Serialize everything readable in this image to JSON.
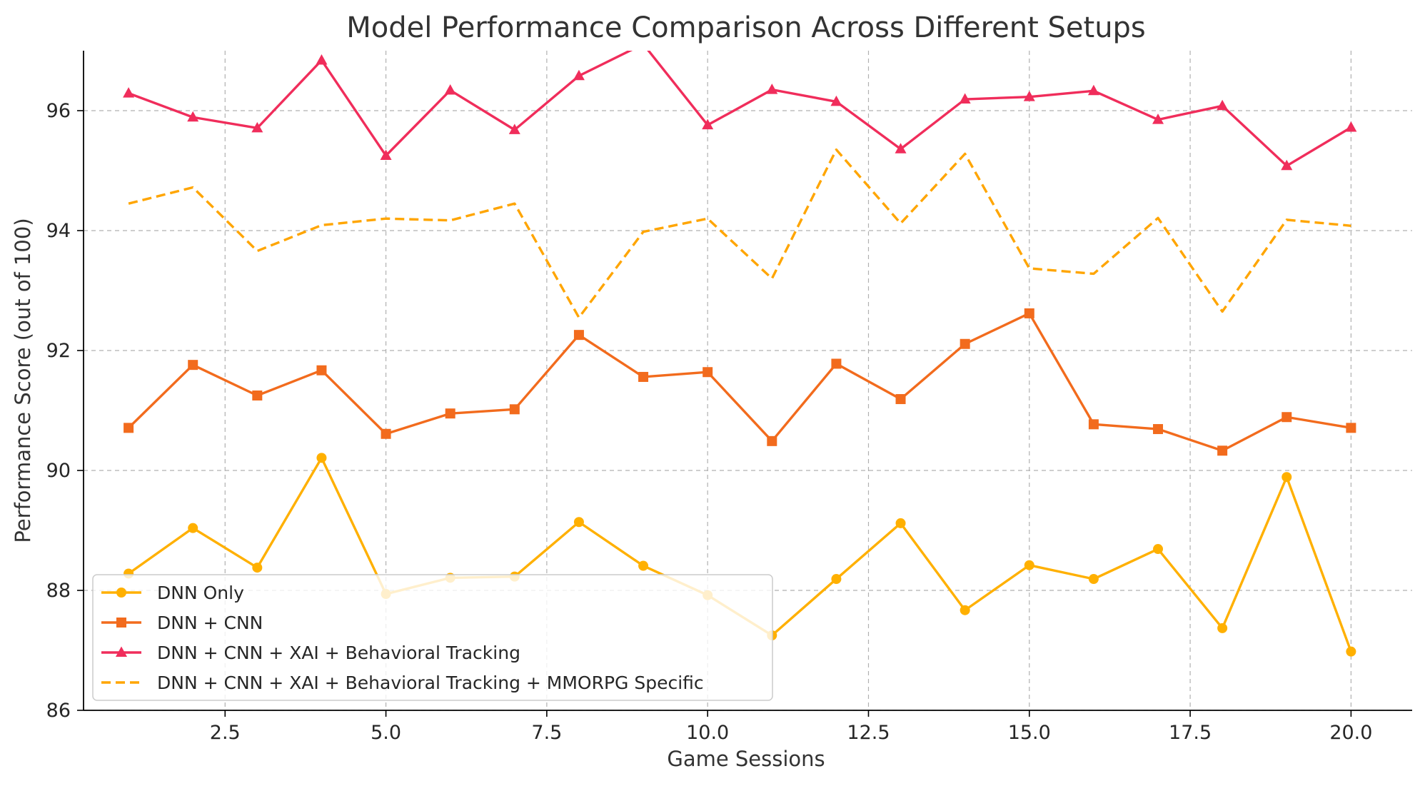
{
  "chart_data": {
    "type": "line",
    "title": "Model Performance Comparison Across Different Setups",
    "xlabel": "Game Sessions",
    "ylabel": "Performance Score (out of 100)",
    "xlim": [
      0.3,
      20.95
    ],
    "ylim": [
      86,
      97
    ],
    "xticks": [
      2.5,
      5.0,
      7.5,
      10.0,
      12.5,
      15.0,
      17.5,
      20.0
    ],
    "xtick_labels": [
      "2.5",
      "5.0",
      "7.5",
      "10.0",
      "12.5",
      "15.0",
      "17.5",
      "20.0"
    ],
    "yticks": [
      86,
      88,
      90,
      92,
      94,
      96
    ],
    "ytick_labels": [
      "86",
      "88",
      "90",
      "92",
      "94",
      "96"
    ],
    "grid": true,
    "legend_position": "lower-left",
    "x": [
      1,
      2,
      3,
      4,
      5,
      6,
      7,
      8,
      9,
      10,
      11,
      12,
      13,
      14,
      15,
      16,
      17,
      18,
      19,
      20
    ],
    "series": [
      {
        "name": "DNN Only",
        "color": "#FFB000",
        "marker": "circle",
        "line_style": "solid",
        "values": [
          88.28,
          89.04,
          88.38,
          90.21,
          87.94,
          88.21,
          88.23,
          89.14,
          88.41,
          87.92,
          87.25,
          88.19,
          89.12,
          87.67,
          88.42,
          88.19,
          88.69,
          87.37,
          89.89,
          86.98
        ]
      },
      {
        "name": "DNN + CNN",
        "color": "#F26B1D",
        "marker": "square",
        "line_style": "solid",
        "values": [
          90.71,
          91.76,
          91.25,
          91.67,
          90.61,
          90.95,
          91.02,
          92.26,
          91.56,
          91.64,
          90.49,
          91.78,
          91.19,
          92.11,
          92.62,
          90.77,
          90.69,
          90.33,
          90.89,
          90.71
        ]
      },
      {
        "name": "DNN + CNN + XAI + Behavioral Tracking",
        "color": "#F02D5B",
        "marker": "triangle",
        "line_style": "solid",
        "values": [
          96.29,
          95.89,
          95.71,
          96.84,
          95.25,
          96.34,
          95.68,
          96.58,
          97.11,
          95.76,
          96.35,
          96.15,
          95.36,
          96.19,
          96.23,
          96.33,
          95.85,
          96.08,
          95.08,
          95.72
        ]
      },
      {
        "name": "DNN + CNN + XAI + Behavioral Tracking + MMORPG Specific",
        "color": "#FFA500",
        "marker": "none",
        "line_style": "dashed",
        "values": [
          94.45,
          94.72,
          93.66,
          94.09,
          94.2,
          94.17,
          94.45,
          92.55,
          93.98,
          94.2,
          93.2,
          95.35,
          94.12,
          95.28,
          93.37,
          93.28,
          94.21,
          92.65,
          94.18,
          94.08
        ]
      }
    ]
  }
}
